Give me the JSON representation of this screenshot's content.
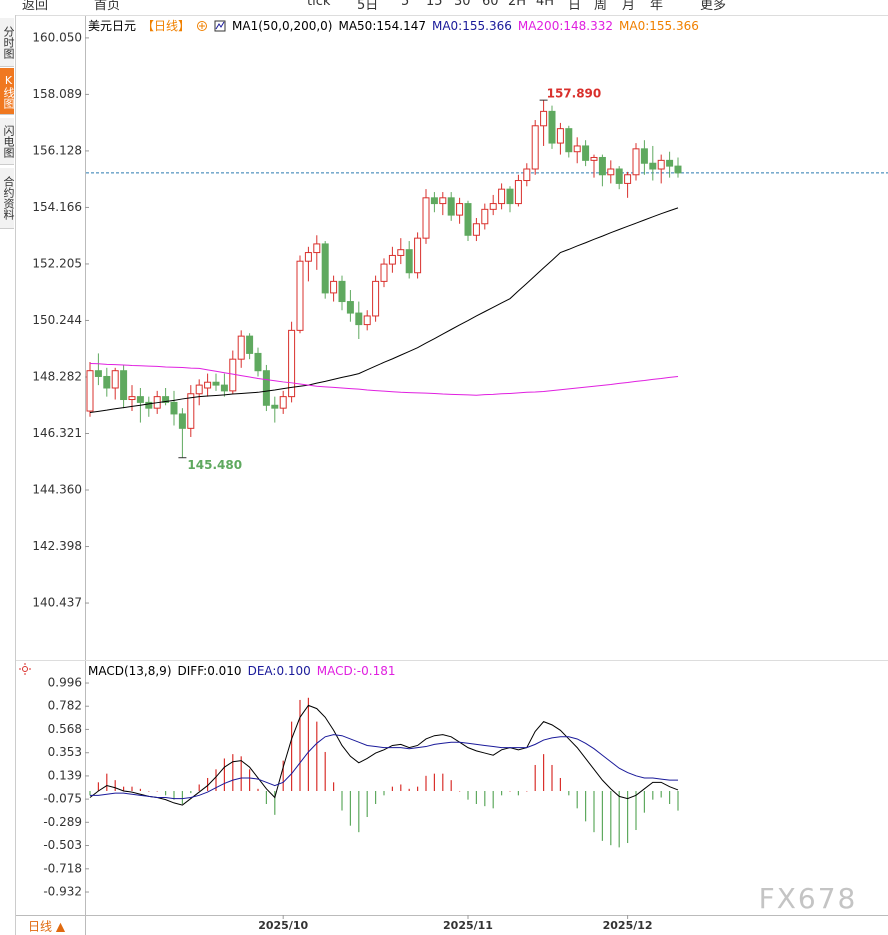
{
  "toolbar": [
    "返回",
    "首页",
    "tick",
    "5日",
    "5",
    "15",
    "30",
    "60",
    "2H",
    "4H",
    "日",
    "周",
    "月",
    "年",
    "更多"
  ],
  "sidebar": [
    "分时图",
    "K线图",
    "闪电图",
    "合约资料"
  ],
  "footer": "日线 ▲",
  "watermark": "FX678",
  "chart_data": [
    {
      "type": "candlestick",
      "title": "美元日元",
      "subtitle": "【日线】",
      "header_items": [
        {
          "text": "MA1(50,0,200,0)",
          "color": "#000000"
        },
        {
          "text": "MA0:155.366",
          "color": "#1a1a9a"
        },
        {
          "text": "MA0:155.366",
          "color": "#f08000"
        }
      ],
      "up_color": "#d9302c",
      "down_color": "#5fa95f",
      "categories": [
        null,
        null,
        null,
        null,
        null,
        null,
        null,
        null,
        null,
        null,
        null,
        null,
        null,
        null,
        null,
        null,
        null,
        null,
        null,
        null,
        null,
        null,
        null,
        "2025/10",
        null,
        null,
        null,
        null,
        null,
        null,
        null,
        null,
        null,
        null,
        null,
        null,
        null,
        null,
        null,
        null,
        null,
        null,
        null,
        null,
        null,
        "2025/11",
        null,
        null,
        null,
        null,
        null,
        null,
        null,
        null,
        null,
        null,
        null,
        null,
        null,
        null,
        null,
        null,
        null,
        null,
        "2025/12",
        null,
        null,
        null,
        null,
        null,
        null
      ],
      "open": [
        147.1,
        148.5,
        148.3,
        147.9,
        148.5,
        147.5,
        147.6,
        147.4,
        147.2,
        147.6,
        147.4,
        147.0,
        146.5,
        147.7,
        147.9,
        148.1,
        148.0,
        147.8,
        148.9,
        149.7,
        149.1,
        148.5,
        147.3,
        147.2,
        147.6,
        149.9,
        152.3,
        152.6,
        152.9,
        151.2,
        151.6,
        150.9,
        150.5,
        150.1,
        150.4,
        151.6,
        152.2,
        152.5,
        152.7,
        151.9,
        153.1,
        154.5,
        154.3,
        154.5,
        153.9,
        154.3,
        153.2,
        153.6,
        154.1,
        154.3,
        154.8,
        154.3,
        155.1,
        155.5,
        157.0,
        157.5,
        156.4,
        156.9,
        156.1,
        156.3,
        155.8,
        155.9,
        155.3,
        155.5,
        155.0,
        155.3,
        156.2,
        155.7,
        155.5,
        155.8,
        155.6
      ],
      "high": [
        148.8,
        149.1,
        148.6,
        148.6,
        148.7,
        148.0,
        147.9,
        147.6,
        147.8,
        147.9,
        147.8,
        147.2,
        148.0,
        148.2,
        148.4,
        148.4,
        148.4,
        149.2,
        149.9,
        149.8,
        149.3,
        148.7,
        147.6,
        147.8,
        150.2,
        152.5,
        152.8,
        153.2,
        153.0,
        151.8,
        151.8,
        151.3,
        150.9,
        150.6,
        151.8,
        152.4,
        152.8,
        153.1,
        153.0,
        153.3,
        154.8,
        154.7,
        154.7,
        154.7,
        154.5,
        154.4,
        153.8,
        154.3,
        154.6,
        155.0,
        154.9,
        155.3,
        155.7,
        157.2,
        157.89,
        157.7,
        157.1,
        157.0,
        156.6,
        156.5,
        156.0,
        156.0,
        155.8,
        155.6,
        155.4,
        156.4,
        156.5,
        156.3,
        156.0,
        156.1,
        155.9
      ],
      "low": [
        146.9,
        148.0,
        147.6,
        147.5,
        147.2,
        147.1,
        146.7,
        146.9,
        147.0,
        147.3,
        146.6,
        145.48,
        146.2,
        147.3,
        147.6,
        147.8,
        147.6,
        147.7,
        148.6,
        148.9,
        148.3,
        147.1,
        146.7,
        147.0,
        147.4,
        149.8,
        151.6,
        152.0,
        151.0,
        150.9,
        150.6,
        150.2,
        149.6,
        149.9,
        150.2,
        151.4,
        151.9,
        152.2,
        151.7,
        151.7,
        152.9,
        154.0,
        153.9,
        153.7,
        153.6,
        153.0,
        153.0,
        153.4,
        153.9,
        154.1,
        154.0,
        154.2,
        154.9,
        155.3,
        156.3,
        156.2,
        156.0,
        155.9,
        155.7,
        155.6,
        155.2,
        154.9,
        155.0,
        154.8,
        154.5,
        155.1,
        155.3,
        155.1,
        155.0,
        155.2,
        155.2
      ],
      "close": [
        148.5,
        148.3,
        147.9,
        148.5,
        147.5,
        147.6,
        147.4,
        147.2,
        147.6,
        147.4,
        147.0,
        146.5,
        147.7,
        148.0,
        148.1,
        148.0,
        147.8,
        148.9,
        149.7,
        149.1,
        148.5,
        147.3,
        147.2,
        147.6,
        149.9,
        152.3,
        152.6,
        152.9,
        151.2,
        151.6,
        150.9,
        150.5,
        150.1,
        150.4,
        151.6,
        152.2,
        152.5,
        152.7,
        151.9,
        153.1,
        154.5,
        154.3,
        154.5,
        153.9,
        154.3,
        153.2,
        153.6,
        154.1,
        154.3,
        154.8,
        154.3,
        155.1,
        155.5,
        157.0,
        157.5,
        156.4,
        156.9,
        156.1,
        156.3,
        155.8,
        155.9,
        155.3,
        155.5,
        155.0,
        155.3,
        156.2,
        155.7,
        155.5,
        155.8,
        155.6,
        155.366
      ],
      "series": [
        {
          "name": "MA50:154.147",
          "color": "#000000",
          "values": [
            147.05,
            147.09,
            147.13,
            147.18,
            147.22,
            147.26,
            147.3,
            147.35,
            147.39,
            147.43,
            147.47,
            147.52,
            147.56,
            147.6,
            147.62,
            147.64,
            147.66,
            147.69,
            147.71,
            147.73,
            147.75,
            147.79,
            147.83,
            147.88,
            147.92,
            147.96,
            148.0,
            148.07,
            148.13,
            148.2,
            148.27,
            148.33,
            148.4,
            148.53,
            148.66,
            148.79,
            148.91,
            149.04,
            149.17,
            149.3,
            149.46,
            149.61,
            149.77,
            149.93,
            150.09,
            150.24,
            150.4,
            150.55,
            150.7,
            150.85,
            151.0,
            151.27,
            151.53,
            151.8,
            152.07,
            152.33,
            152.6,
            152.71,
            152.83,
            152.94,
            153.06,
            153.17,
            153.29,
            153.4,
            153.51,
            153.62,
            153.73,
            153.84,
            153.95,
            154.05,
            154.15
          ]
        },
        {
          "name": "MA200:148.332",
          "color": "#e020e0",
          "values": [
            148.75,
            148.74,
            148.72,
            148.71,
            148.7,
            148.68,
            148.67,
            148.66,
            148.65,
            148.63,
            148.62,
            148.61,
            148.59,
            148.58,
            148.53,
            148.48,
            148.43,
            148.38,
            148.33,
            148.28,
            148.23,
            148.19,
            148.15,
            148.11,
            148.08,
            148.04,
            148.0,
            147.96,
            147.94,
            147.92,
            147.9,
            147.88,
            147.86,
            147.83,
            147.81,
            147.79,
            147.77,
            147.75,
            147.74,
            147.73,
            147.72,
            147.71,
            147.69,
            147.68,
            147.67,
            147.66,
            147.65,
            147.67,
            147.68,
            147.7,
            147.71,
            147.73,
            147.75,
            147.76,
            147.78,
            147.81,
            147.84,
            147.87,
            147.9,
            147.93,
            147.96,
            147.99,
            148.02,
            148.06,
            148.09,
            148.13,
            148.16,
            148.2,
            148.23,
            148.27,
            148.3
          ]
        }
      ],
      "last_price": 155.366,
      "last_price_color": "#2a7ab0",
      "annotations": [
        "157.890",
        "145.480"
      ],
      "ylim": [
        138.46,
        160.81
      ],
      "yticks": [
        {
          "value": 160.05,
          "label": "160.050"
        },
        158.089,
        156.128,
        154.166,
        152.205,
        150.244,
        148.282,
        146.321,
        {
          "value": 144.36,
          "label": "144.360"
        },
        142.398,
        140.437
      ]
    },
    {
      "type": "macd",
      "title": "MACD(13,8,9)",
      "series": [
        {
          "name": "DIFF:0.010",
          "type": "line",
          "color": "#000000",
          "values": [
            -0.06,
            0.0,
            0.05,
            0.03,
            0.0,
            -0.01,
            -0.03,
            -0.05,
            -0.06,
            -0.08,
            -0.11,
            -0.13,
            -0.07,
            -0.01,
            0.05,
            0.13,
            0.22,
            0.27,
            0.28,
            0.22,
            0.12,
            0.02,
            -0.06,
            0.22,
            0.48,
            0.68,
            0.79,
            0.76,
            0.68,
            0.56,
            0.42,
            0.32,
            0.26,
            0.3,
            0.35,
            0.38,
            0.42,
            0.43,
            0.4,
            0.42,
            0.48,
            0.51,
            0.52,
            0.5,
            0.45,
            0.4,
            0.37,
            0.35,
            0.33,
            0.38,
            0.4,
            0.38,
            0.4,
            0.55,
            0.64,
            0.61,
            0.56,
            0.48,
            0.4,
            0.3,
            0.2,
            0.1,
            0.02,
            -0.05,
            -0.07,
            -0.04,
            0.02,
            0.08,
            0.08,
            0.04,
            0.01
          ]
        },
        {
          "name": "DEA:0.100",
          "type": "line",
          "color": "#1a1a9a",
          "values": [
            -0.04,
            -0.04,
            -0.03,
            -0.02,
            -0.02,
            -0.03,
            -0.04,
            -0.05,
            -0.06,
            -0.06,
            -0.07,
            -0.07,
            -0.06,
            -0.04,
            -0.01,
            0.03,
            0.07,
            0.1,
            0.12,
            0.12,
            0.11,
            0.08,
            0.05,
            0.08,
            0.16,
            0.26,
            0.36,
            0.44,
            0.5,
            0.52,
            0.51,
            0.48,
            0.45,
            0.42,
            0.41,
            0.4,
            0.4,
            0.4,
            0.39,
            0.4,
            0.41,
            0.43,
            0.44,
            0.45,
            0.45,
            0.44,
            0.43,
            0.42,
            0.41,
            0.4,
            0.4,
            0.4,
            0.4,
            0.43,
            0.47,
            0.49,
            0.5,
            0.5,
            0.48,
            0.44,
            0.39,
            0.33,
            0.27,
            0.21,
            0.17,
            0.14,
            0.12,
            0.12,
            0.11,
            0.1,
            0.1
          ]
        },
        {
          "name": "MACD:-0.181",
          "type": "bar",
          "color": "#e020e0",
          "up_color": "#d9302c",
          "down_color": "#5fa95f",
          "values": [
            -0.04,
            0.08,
            0.16,
            0.1,
            0.04,
            0.04,
            0.02,
            0.0,
            0.0,
            -0.04,
            -0.08,
            -0.12,
            -0.02,
            0.06,
            0.12,
            0.2,
            0.3,
            0.34,
            0.32,
            0.2,
            0.02,
            -0.12,
            -0.22,
            0.28,
            0.64,
            0.84,
            0.86,
            0.64,
            0.36,
            0.08,
            -0.18,
            -0.32,
            -0.38,
            -0.24,
            -0.12,
            -0.04,
            0.04,
            0.06,
            0.02,
            0.04,
            0.14,
            0.16,
            0.16,
            0.1,
            0.0,
            -0.08,
            -0.12,
            -0.14,
            -0.16,
            -0.04,
            0.0,
            -0.04,
            0.0,
            0.24,
            0.34,
            0.24,
            0.12,
            -0.04,
            -0.16,
            -0.28,
            -0.38,
            -0.46,
            -0.5,
            -0.52,
            -0.48,
            -0.36,
            -0.2,
            -0.08,
            -0.06,
            -0.12,
            -0.181
          ]
        }
      ],
      "ylim": [
        -1.144,
        1.19
      ],
      "yticks": [
        0.996,
        0.782,
        0.568,
        0.353,
        0.139,
        -0.075,
        -0.289,
        -0.503,
        -0.718,
        -0.932
      ]
    }
  ]
}
